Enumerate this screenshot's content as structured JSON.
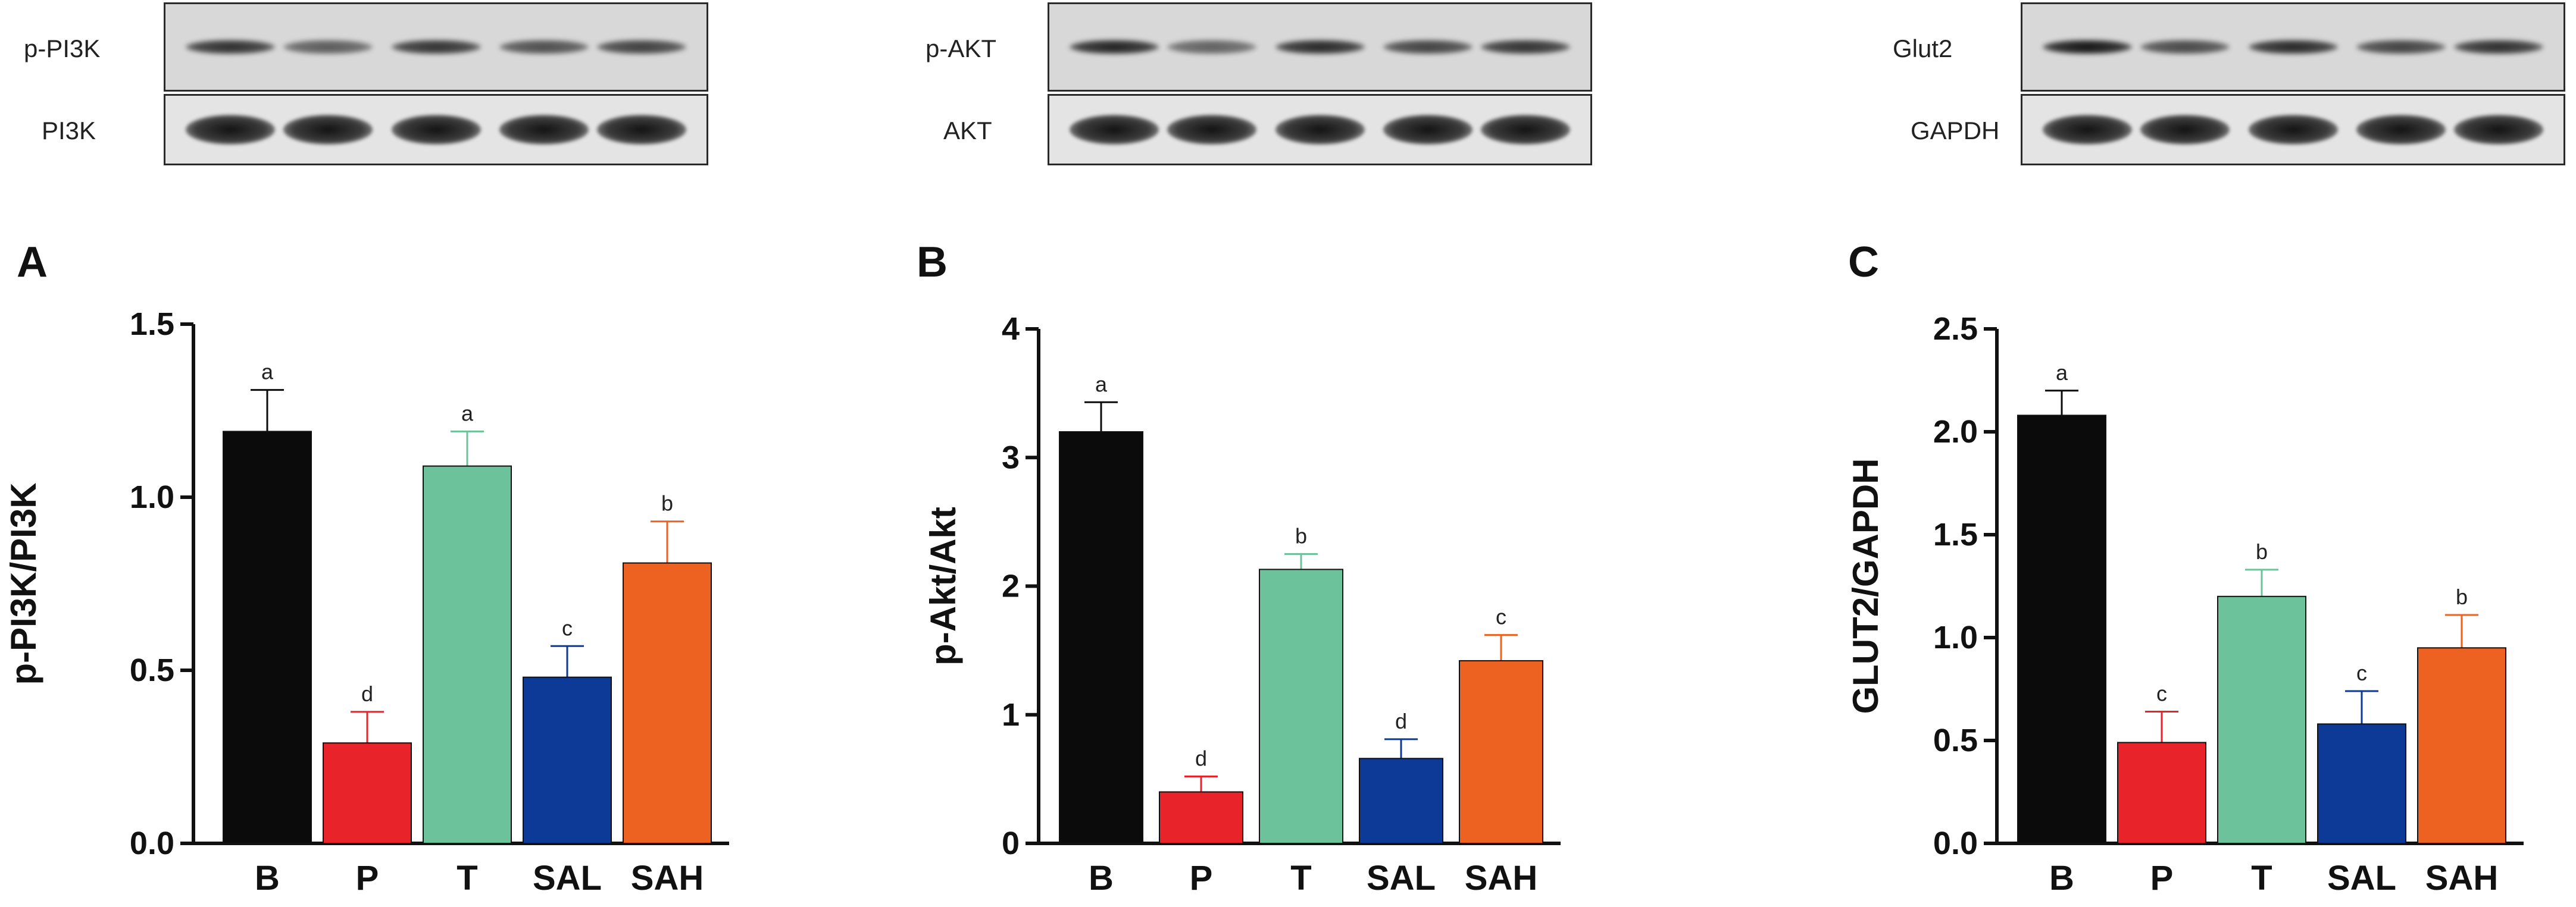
{
  "blots": [
    {
      "top_label": "p-PI3K",
      "bottom_label": "PI3K",
      "top_intensity": [
        0.75,
        0.4,
        0.72,
        0.5,
        0.62
      ],
      "bottom_intensity": [
        1,
        1,
        1,
        1,
        1
      ]
    },
    {
      "top_label": "p-AKT",
      "bottom_label": "AKT",
      "top_intensity": [
        0.85,
        0.35,
        0.8,
        0.6,
        0.72
      ],
      "bottom_intensity": [
        1,
        1,
        1,
        1,
        1
      ]
    },
    {
      "top_label": "Glut2",
      "bottom_label": "GAPDH",
      "top_intensity": [
        0.95,
        0.55,
        0.8,
        0.6,
        0.75
      ],
      "bottom_intensity": [
        1,
        1,
        1,
        1,
        1
      ]
    }
  ],
  "colors": {
    "B": "#0b0b0b",
    "P": "#e8232a",
    "T": "#6cc29b",
    "SAL": "#0c3a96",
    "SAH": "#ee6221"
  },
  "chart_data": [
    {
      "panel": "A",
      "type": "bar",
      "categories": [
        "B",
        "P",
        "T",
        "SAL",
        "SAH"
      ],
      "values": [
        1.19,
        0.29,
        1.09,
        0.48,
        0.81
      ],
      "errors": [
        0.12,
        0.09,
        0.1,
        0.09,
        0.12
      ],
      "letters": [
        "a",
        "d",
        "a",
        "c",
        "b"
      ],
      "ylabel": "p-PI3K/PI3K",
      "ylim": [
        0,
        1.5
      ],
      "ticks": [
        0.0,
        0.5,
        1.0,
        1.5
      ],
      "tick_labels": [
        "0.0",
        "0.5",
        "1.0",
        "1.5"
      ]
    },
    {
      "panel": "B",
      "type": "bar",
      "categories": [
        "B",
        "P",
        "T",
        "SAL",
        "SAH"
      ],
      "values": [
        3.2,
        0.4,
        2.13,
        0.66,
        1.42
      ],
      "errors": [
        0.23,
        0.12,
        0.12,
        0.15,
        0.2
      ],
      "letters": [
        "a",
        "d",
        "b",
        "d",
        "c"
      ],
      "ylabel": "p-Akt/Akt",
      "ylim": [
        0,
        4
      ],
      "ticks": [
        0,
        1,
        2,
        3,
        4
      ],
      "tick_labels": [
        "0",
        "1",
        "2",
        "3",
        "4"
      ]
    },
    {
      "panel": "C",
      "type": "bar",
      "categories": [
        "B",
        "P",
        "T",
        "SAL",
        "SAH"
      ],
      "values": [
        2.08,
        0.49,
        1.2,
        0.58,
        0.95
      ],
      "errors": [
        0.12,
        0.15,
        0.13,
        0.16,
        0.16
      ],
      "letters": [
        "a",
        "c",
        "b",
        "c",
        "b"
      ],
      "ylabel": "GLUT2/GAPDH",
      "ylim": [
        0,
        2.5
      ],
      "ticks": [
        0.0,
        0.5,
        1.0,
        1.5,
        2.0,
        2.5
      ],
      "tick_labels": [
        "0.0",
        "0.5",
        "1.0",
        "1.5",
        "2.0",
        "2.5"
      ]
    }
  ]
}
